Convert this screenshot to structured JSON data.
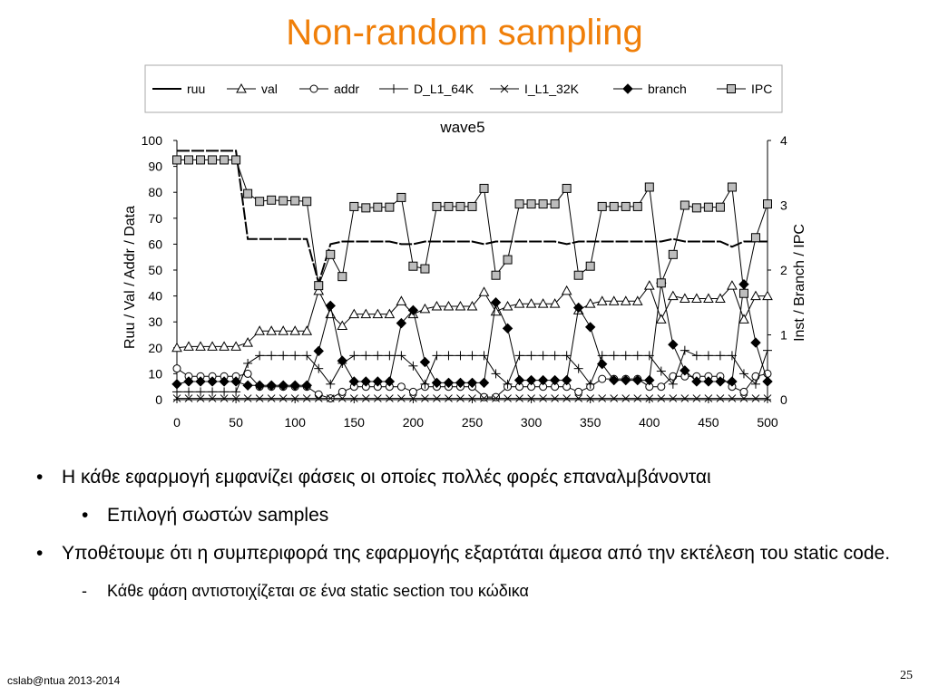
{
  "slide": {
    "title": "Non-random sampling",
    "footer": "cslab@ntua 2013-2014",
    "page_number": "25",
    "title_color": "#f07f09"
  },
  "bullets": [
    {
      "level": 1,
      "marker": "•",
      "text": "Η κάθε εφαρμογή εμφανίζει φάσεις οι οποίες πολλές φορές επαναλμβάνονται"
    },
    {
      "level": 2,
      "marker": "•",
      "text": "Επιλογή σωστών samples"
    },
    {
      "level": 1,
      "marker": "•",
      "text": "Υποθέτουμε ότι η συμπεριφορά της εφαρμογής εξαρτάται άμεσα από την εκτέλεση του static code."
    },
    {
      "level": 2,
      "marker": "-",
      "text": "Κάθε φάση αντιστοιχίζεται σε ένα static section του κώδικα"
    }
  ],
  "chart_data": {
    "type": "line",
    "title": "wave5",
    "xlabel": "",
    "ylabel": "Ruu / Val / Addr / Data",
    "y2label": "Inst / Branch / IPC",
    "xlim": [
      0,
      500
    ],
    "ylim": [
      0,
      100
    ],
    "y2lim": [
      0,
      4
    ],
    "xticks": [
      0,
      50,
      100,
      150,
      200,
      250,
      300,
      350,
      400,
      450,
      500
    ],
    "yticks": [
      0,
      10,
      20,
      30,
      40,
      50,
      60,
      70,
      80,
      90,
      100
    ],
    "y2ticks": [
      0,
      1,
      2,
      3,
      4
    ],
    "grid": false,
    "legend_position": "top",
    "x": [
      0,
      10,
      20,
      30,
      40,
      50,
      60,
      70,
      80,
      90,
      100,
      110,
      120,
      130,
      140,
      150,
      160,
      170,
      180,
      190,
      200,
      210,
      220,
      230,
      240,
      250,
      260,
      270,
      280,
      290,
      300,
      310,
      320,
      330,
      340,
      350,
      360,
      370,
      380,
      390,
      400,
      410,
      420,
      430,
      440,
      450,
      460,
      470,
      480,
      490,
      500
    ],
    "series": [
      {
        "name": "ruu",
        "axis": "left",
        "marker": "none",
        "values": [
          96,
          96,
          96,
          96,
          96,
          96,
          62,
          62,
          62,
          62,
          62,
          62,
          45,
          60,
          61,
          61,
          61,
          61,
          61,
          60,
          60,
          61,
          61,
          61,
          61,
          61,
          60,
          61,
          61,
          61,
          61,
          61,
          61,
          60,
          61,
          61,
          61,
          61,
          61,
          61,
          61,
          61,
          62,
          61,
          61,
          61,
          61,
          59,
          61,
          61,
          61
        ]
      },
      {
        "name": "val",
        "axis": "left",
        "marker": "triangle",
        "values": [
          20,
          20.5,
          20.5,
          20.5,
          20.5,
          20.5,
          22,
          26.5,
          26.5,
          26.5,
          26.5,
          26.5,
          42,
          33,
          28.5,
          33,
          33,
          33,
          33,
          38,
          33,
          35,
          36,
          36,
          36,
          36,
          41.5,
          34,
          36,
          37,
          37,
          37,
          37,
          42,
          34.5,
          37,
          38,
          38,
          38,
          38,
          44,
          31,
          40,
          39,
          39,
          39,
          39,
          44,
          31,
          40,
          40
        ]
      },
      {
        "name": "addr",
        "axis": "left",
        "marker": "circle",
        "values": [
          12,
          9,
          9,
          9,
          9,
          9,
          10,
          5,
          5,
          5,
          5,
          5,
          2,
          0.5,
          3,
          5,
          5,
          5,
          5,
          5,
          3,
          5,
          5,
          5,
          5,
          5,
          1,
          1,
          5,
          5,
          5,
          5,
          5,
          5,
          3,
          5,
          8,
          8,
          8,
          8,
          5,
          5,
          9,
          9,
          9,
          9,
          9,
          5,
          3,
          9,
          10
        ]
      },
      {
        "name": "D_L1_64K",
        "axis": "left",
        "marker": "plus",
        "values": [
          3,
          3,
          3,
          3,
          3,
          3,
          14,
          17,
          17,
          17,
          17,
          17,
          12,
          6,
          14,
          17,
          17,
          17,
          17,
          17,
          13,
          6,
          17,
          17,
          17,
          17,
          17,
          10,
          6,
          17,
          17,
          17,
          17,
          17,
          12,
          6,
          17,
          17,
          17,
          17,
          17,
          11,
          6,
          19,
          17,
          17,
          17,
          17,
          10,
          6,
          19
        ]
      },
      {
        "name": "I_L1_32K",
        "axis": "left",
        "marker": "x",
        "values": [
          0.5,
          0.5,
          0.5,
          0.5,
          0.5,
          0.5,
          0.5,
          0.5,
          0.5,
          0.5,
          0.5,
          0.5,
          0.5,
          0.5,
          0.5,
          0.5,
          0.5,
          0.5,
          0.5,
          0.5,
          0.5,
          0.5,
          0.5,
          0.5,
          0.5,
          0.5,
          0.5,
          0.5,
          0.5,
          0.5,
          0.5,
          0.5,
          0.5,
          0.5,
          0.5,
          0.5,
          0.5,
          0.5,
          0.5,
          0.5,
          0.5,
          0.5,
          0.5,
          0.5,
          0.5,
          0.5,
          0.5,
          0.5,
          0.5,
          0.5,
          0.5
        ]
      },
      {
        "name": "branch",
        "axis": "right",
        "marker": "diamond",
        "values": [
          0.24,
          0.28,
          0.28,
          0.28,
          0.28,
          0.28,
          0.22,
          0.22,
          0.22,
          0.22,
          0.22,
          0.22,
          0.75,
          1.45,
          0.6,
          0.28,
          0.28,
          0.28,
          0.28,
          1.18,
          1.38,
          0.58,
          0.26,
          0.26,
          0.26,
          0.26,
          0.26,
          1.5,
          1.1,
          0.3,
          0.3,
          0.3,
          0.3,
          0.3,
          1.42,
          1.12,
          0.55,
          0.3,
          0.3,
          0.3,
          0.3,
          1.8,
          0.85,
          0.45,
          0.28,
          0.28,
          0.28,
          0.28,
          1.78,
          0.88,
          0.28
        ]
      },
      {
        "name": "IPC",
        "axis": "right",
        "marker": "square",
        "values": [
          3.7,
          3.7,
          3.7,
          3.7,
          3.7,
          3.7,
          3.18,
          3.06,
          3.08,
          3.07,
          3.07,
          3.06,
          1.76,
          2.24,
          1.9,
          2.98,
          2.96,
          2.97,
          2.97,
          3.12,
          2.06,
          2.02,
          2.98,
          2.98,
          2.98,
          2.98,
          3.26,
          1.92,
          2.16,
          3.02,
          3.02,
          3.02,
          3.02,
          3.26,
          1.92,
          2.06,
          2.98,
          2.98,
          2.98,
          2.98,
          3.28,
          1.8,
          2.24,
          3.0,
          2.96,
          2.97,
          2.97,
          3.28,
          1.64,
          2.5,
          3.02
        ]
      }
    ]
  }
}
